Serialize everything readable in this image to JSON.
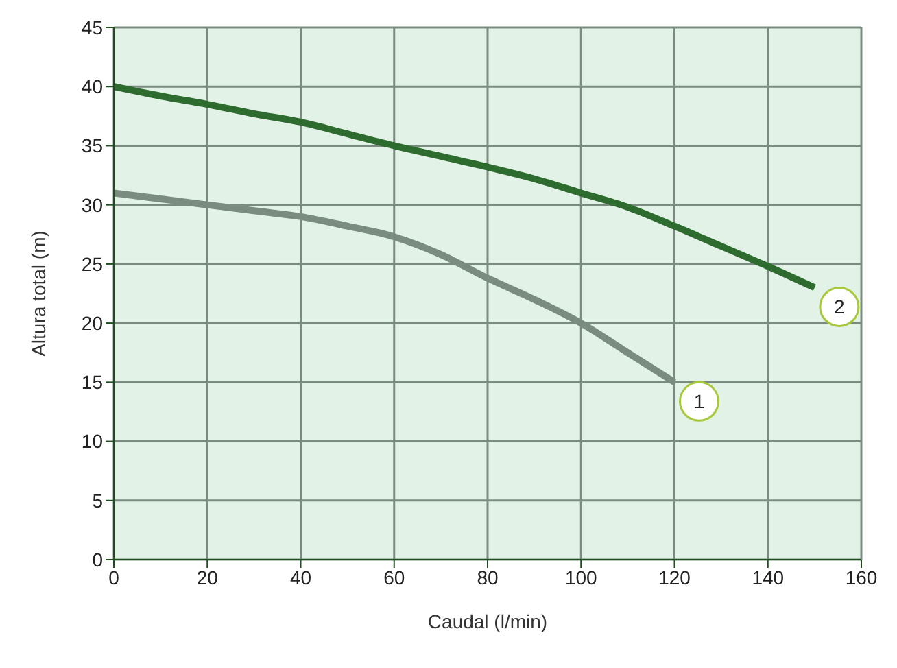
{
  "chart_data": {
    "type": "line",
    "xlabel": "Caudal (l/min)",
    "ylabel": "Altura total (m)",
    "xlim": [
      0,
      160
    ],
    "xticks": [
      0,
      20,
      40,
      60,
      80,
      100,
      120,
      140,
      160
    ],
    "ylim": [
      0,
      45
    ],
    "yticks": [
      0,
      5,
      10,
      15,
      20,
      25,
      30,
      35,
      40,
      45
    ],
    "grid": true,
    "legend": false,
    "marker": "none",
    "line_style": "solid",
    "series": [
      {
        "name": "1",
        "color": "#7a8c7f",
        "x": [
          0,
          10,
          20,
          30,
          40,
          50,
          60,
          70,
          80,
          90,
          100,
          110,
          120
        ],
        "values": [
          31,
          30.5,
          30,
          29.5,
          29,
          28.2,
          27.3,
          25.8,
          23.8,
          22,
          20,
          17.5,
          15
        ]
      },
      {
        "name": "2",
        "color": "#2e6b2e",
        "x": [
          0,
          10,
          20,
          30,
          40,
          50,
          60,
          70,
          80,
          90,
          100,
          110,
          120,
          130,
          140,
          150
        ],
        "values": [
          40,
          39.2,
          38.5,
          37.7,
          37,
          36,
          35,
          34.1,
          33.2,
          32.2,
          31,
          29.8,
          28.2,
          26.5,
          24.8,
          23
        ]
      }
    ]
  }
}
